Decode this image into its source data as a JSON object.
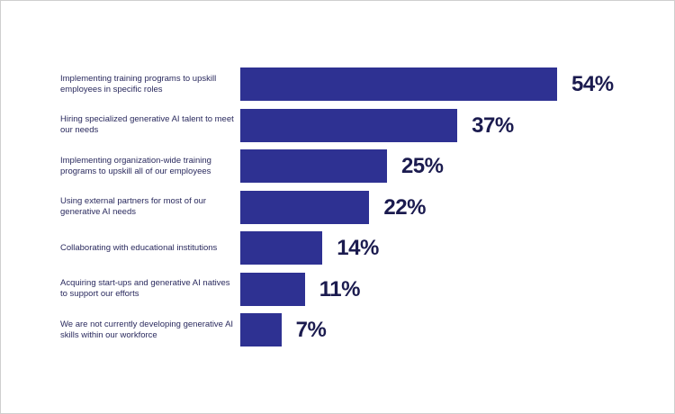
{
  "chart_data": {
    "type": "bar",
    "orientation": "horizontal",
    "categories": [
      "Implementing training programs to upskill employees in specific roles",
      "Hiring specialized generative AI talent to meet our needs",
      "Implementing organization-wide training programs to upskill all of our employees",
      "Using external partners for most of our generative AI needs",
      "Collaborating with educational institutions",
      "Acquiring start-ups and generative AI natives to support our efforts",
      "We are not currently developing generative AI skills within our workforce"
    ],
    "values": [
      54,
      37,
      25,
      22,
      14,
      11,
      7
    ],
    "value_labels": [
      "54%",
      "37%",
      "25%",
      "22%",
      "14%",
      "11%",
      "7%"
    ],
    "unit": "%",
    "xlim": [
      0,
      54
    ],
    "grid": false,
    "bar_color": "#2e3192",
    "label_color": "#2a2a5e"
  }
}
